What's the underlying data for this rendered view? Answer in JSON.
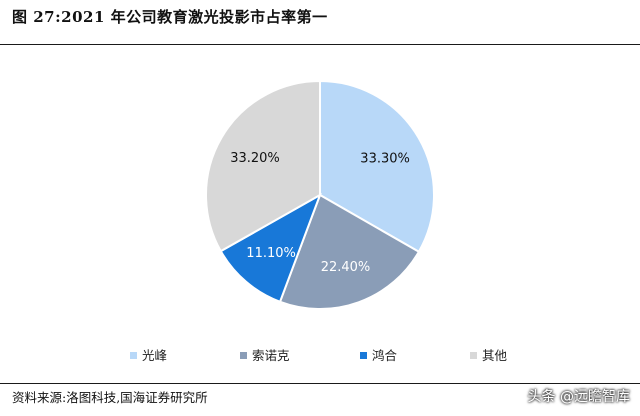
{
  "title": "图 27:2021 年公司教育激光投影市占率第一",
  "source": "资料来源:洛图科技,国海证券研究所",
  "watermark": "头条 @远瞻智库",
  "chart_data": {
    "type": "pie",
    "categories": [
      "光峰",
      "索诺克",
      "鸿合",
      "其他"
    ],
    "values": [
      33.3,
      22.4,
      11.1,
      33.2
    ],
    "value_labels": [
      "33.30%",
      "22.40%",
      "11.10%",
      "33.20%"
    ],
    "colors": [
      "#b8d8f8",
      "#8a9db7",
      "#1878d8",
      "#d8d8d8"
    ],
    "label_colors": [
      "#111111",
      "#ffffff",
      "#ffffff",
      "#111111"
    ],
    "legend_position": "bottom"
  }
}
